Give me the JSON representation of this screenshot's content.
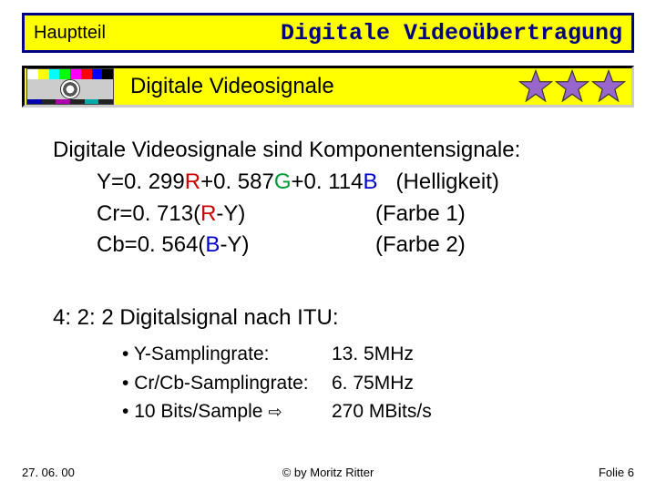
{
  "header": {
    "section_label": "Hauptteil",
    "title": "Digitale Videoübertragung",
    "colors": {
      "bg": "#ffff00",
      "border": "#000080",
      "title_color": "#000080"
    }
  },
  "subheader": {
    "title": "Digitale Videosignale",
    "star_count": 3,
    "star_color": "#9966cc"
  },
  "body": {
    "intro": "Digitale Videosignale sind Komponentensignale:",
    "formulas": [
      {
        "lhs_pre": "Y=0. 299",
        "r": "R",
        "mid1": "+0. 587",
        "g": "G",
        "mid2": "+0. 114",
        "b": "B",
        "desc": "(Helligkeit)"
      },
      {
        "lhs": "Cr=0. 713(",
        "r": "R",
        "tail": "-Y)",
        "desc": "(Farbe 1)"
      },
      {
        "lhs": "Cb=0. 564(",
        "b": "B",
        "tail": "-Y)",
        "desc": "(Farbe 2)"
      }
    ],
    "section2": "4: 2: 2 Digitalsignal nach ITU:",
    "bullets": [
      {
        "label": "Y-Samplingrate:",
        "value": "13. 5MHz"
      },
      {
        "label": "Cr/Cb-Samplingrate:",
        "value": "6. 75MHz"
      },
      {
        "label": "10 Bits/Sample",
        "arrow": "⇨",
        "value": "270 MBits/s"
      }
    ]
  },
  "footer": {
    "date": "27. 06. 00",
    "copyright": "© by Moritz Ritter",
    "page": "Folie 6"
  },
  "testcard_colors": {
    "stripes": [
      "#ffffff",
      "#ffff00",
      "#00ffff",
      "#00ff00",
      "#ff00ff",
      "#ff0000",
      "#0000ff",
      "#000000"
    ],
    "bottom": [
      "#0000aa",
      "#222222",
      "#aa00aa",
      "#222222",
      "#00aaaa",
      "#222222"
    ]
  }
}
